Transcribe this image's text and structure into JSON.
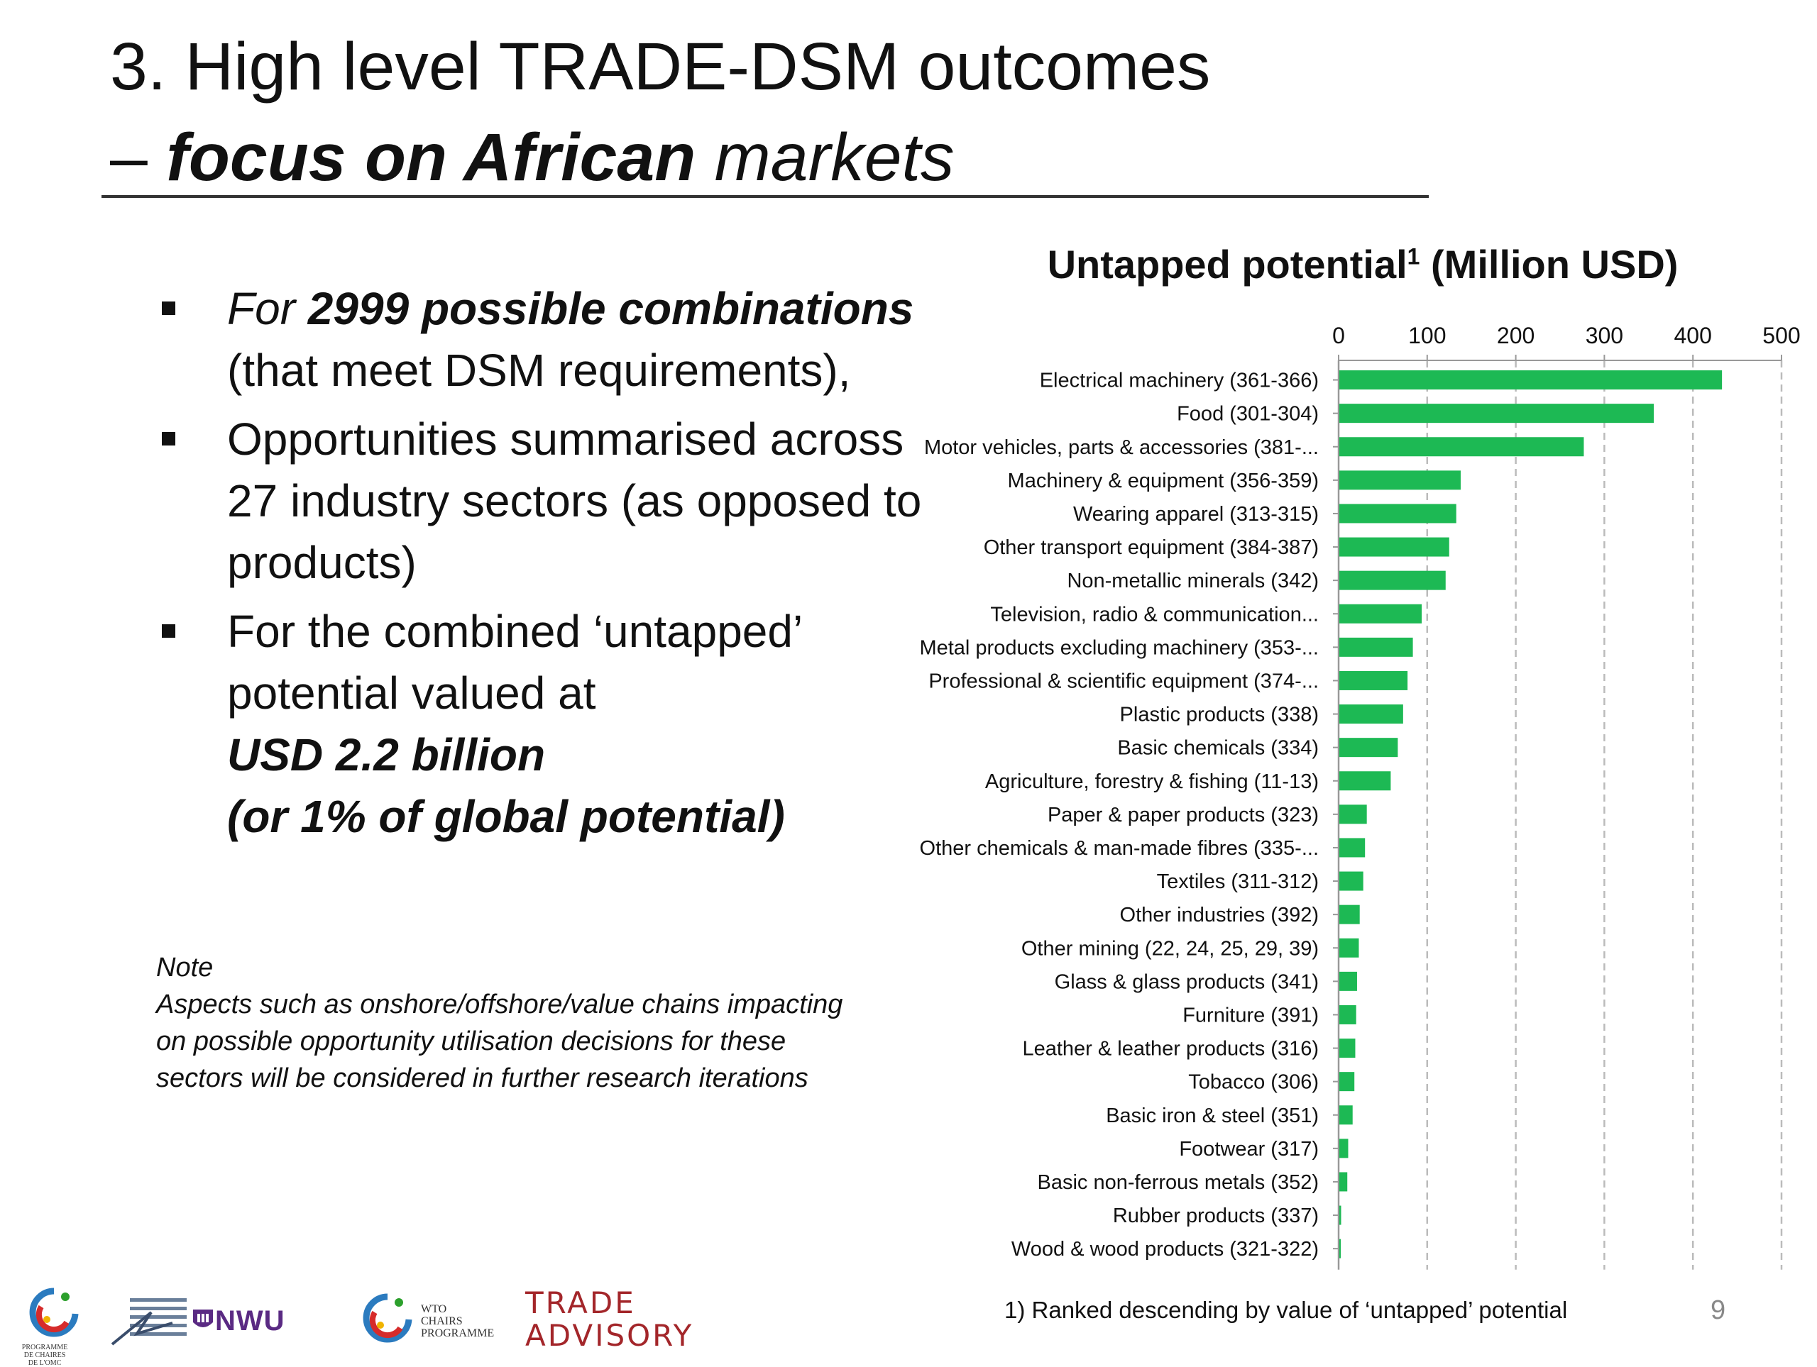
{
  "slide": {
    "title_line1": "3. High level TRADE-DSM outcomes",
    "title_line2_dash": "– ",
    "title_line2_bold": "focus on African",
    "title_line2_rest": " markets",
    "page_number": "9"
  },
  "bullets": [
    {
      "part1": "For ",
      "part2": "2999 possible combinations",
      "part3": "(that meet DSM requirements),"
    },
    {
      "text": "Opportunities summarised across 27 industry sectors (as opposed to products)"
    },
    {
      "line1": "For the combined ‘untapped’ potential valued at",
      "line2": "USD 2.2 billion",
      "line3": "(or 1% of global potential)"
    }
  ],
  "note": {
    "heading": "Note",
    "text": "Aspects such as onshore/offshore/value chains impacting on possible opportunity utilisation decisions for these sectors will be considered in further research iterations"
  },
  "chart_title": {
    "main": "Untapped potential",
    "sup": "1",
    "unit": " (Million USD)"
  },
  "footnote": "1) Ranked descending by value of ‘untapped’ potential",
  "logos": {
    "nwu": "NWU",
    "wto": [
      "WTO",
      "CHAIRS",
      "PROGRAMME"
    ],
    "trade": "TRADE",
    "advisory": "ADVISORY",
    "pcc": [
      "PROGRAMME",
      "DE CHAIRES",
      "DE L'OMC"
    ]
  },
  "colors": {
    "bar": "#1db954",
    "grid": "#bbbbbb",
    "text": "#111111"
  },
  "chart_data": {
    "type": "bar",
    "orientation": "horizontal",
    "title": "Untapped potential1 (Million USD)",
    "xlim": [
      0,
      500
    ],
    "xticks": [
      0,
      100,
      200,
      300,
      400,
      500
    ],
    "grid": true,
    "categories": [
      "Electrical machinery (361-366)",
      "Food (301-304)",
      "Motor vehicles, parts & accessories (381-...",
      "Machinery & equipment (356-359)",
      "Wearing apparel (313-315)",
      "Other transport equipment (384-387)",
      "Non-metallic minerals (342)",
      "Television, radio & communication...",
      "Metal products excluding machinery (353-...",
      "Professional & scientific equipment (374-...",
      "Plastic products (338)",
      "Basic chemicals (334)",
      "Agriculture, forestry & fishing (11-13)",
      "Paper & paper products (323)",
      "Other chemicals & man-made fibres (335-...",
      "Textiles (311-312)",
      "Other industries (392)",
      "Other mining (22, 24, 25, 29, 39)",
      "Glass & glass products (341)",
      "Furniture (391)",
      "Leather & leather products (316)",
      "Tobacco (306)",
      "Basic iron & steel (351)",
      "Footwear (317)",
      "Basic non-ferrous metals (352)",
      "Rubber products (337)",
      "Wood & wood products (321-322)"
    ],
    "values": [
      432,
      355,
      276,
      137,
      132,
      124,
      120,
      93,
      83,
      77,
      72,
      66,
      58,
      31,
      29,
      27,
      23,
      22,
      20,
      19,
      18,
      17,
      15,
      10,
      9,
      2,
      1
    ]
  }
}
